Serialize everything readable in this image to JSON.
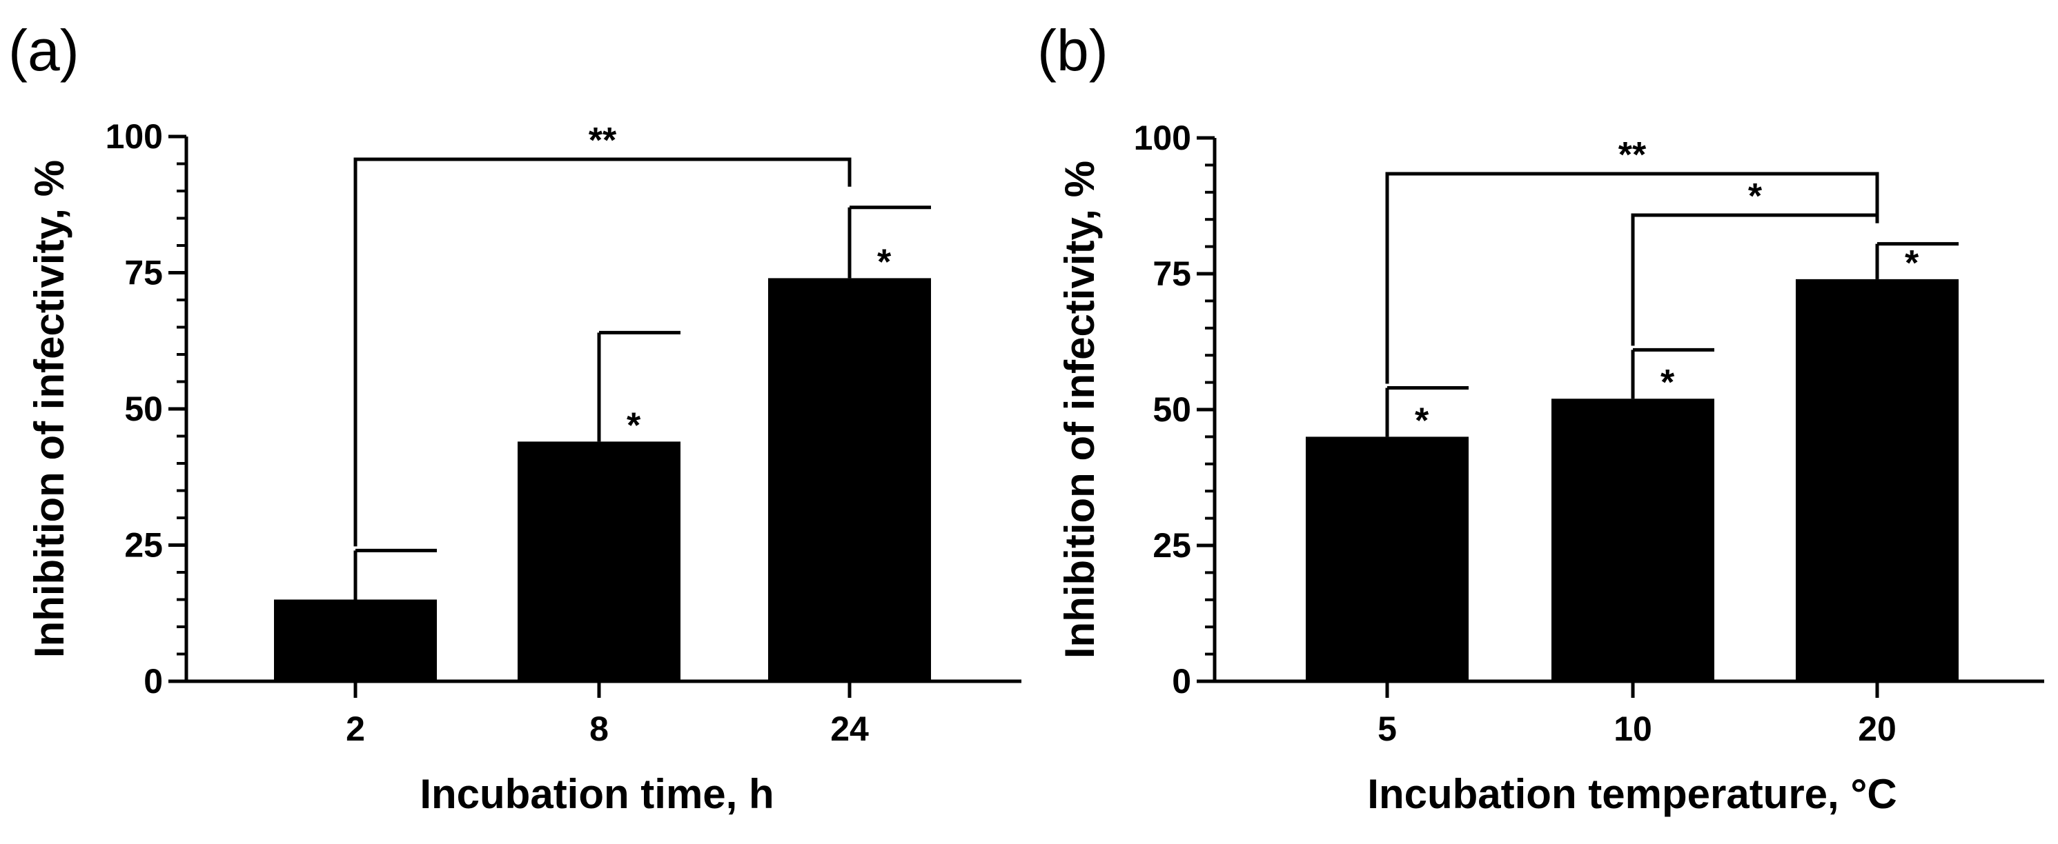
{
  "chart_data": [
    {
      "type": "bar",
      "panel_label": "(a)",
      "categories": [
        "2",
        "8",
        "24"
      ],
      "values": [
        15,
        44,
        74
      ],
      "errors": [
        9,
        20,
        13
      ],
      "bar_stars": [
        "",
        "*",
        "*"
      ],
      "brackets": [
        {
          "from": 0,
          "to": 2,
          "label": "**"
        }
      ],
      "xlabel": "Incubation time, h",
      "ylabel": "Inhibition of infectivity, %",
      "ylim": [
        0,
        100
      ],
      "yticks": [
        0,
        25,
        50,
        75,
        100
      ],
      "bar_color": "#000000"
    },
    {
      "type": "bar",
      "panel_label": "(b)",
      "categories": [
        "5",
        "10",
        "20"
      ],
      "values": [
        45,
        52,
        74
      ],
      "errors": [
        9,
        9,
        6.5
      ],
      "bar_stars": [
        "*",
        "*",
        "*"
      ],
      "brackets": [
        {
          "from": 0,
          "to": 2,
          "label": "**"
        },
        {
          "from": 1,
          "to": 2,
          "label": "*"
        }
      ],
      "xlabel": "Incubation temperature, °C",
      "ylabel": "Inhibition of infectivity, %",
      "ylim": [
        0,
        100
      ],
      "yticks": [
        0,
        25,
        50,
        75,
        100
      ],
      "bar_color": "#000000"
    }
  ]
}
